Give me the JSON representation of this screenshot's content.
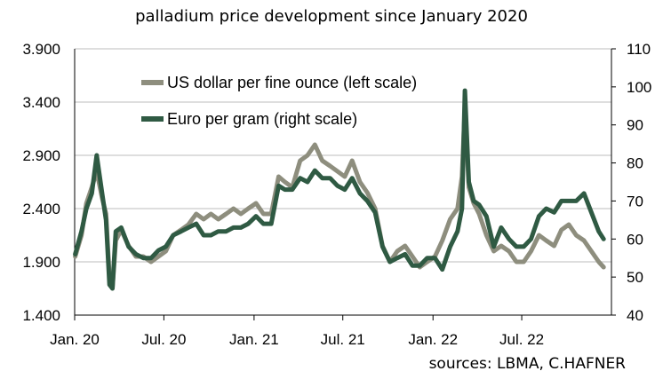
{
  "chart_data": {
    "type": "line",
    "title": "palladium price development since January 2020",
    "source": "sources: LBMA, C.HAFNER",
    "x_labels": [
      "Jan. 20",
      "Jul. 20",
      "Jan. 21",
      "Jul. 21",
      "Jan. 22",
      "Jul. 22"
    ],
    "y_left": {
      "ticks": [
        "1.400",
        "1.900",
        "2.400",
        "2.900",
        "3.400",
        "3.900"
      ],
      "ylim": [
        1400,
        3900
      ]
    },
    "y_right": {
      "ticks": [
        "40",
        "50",
        "60",
        "70",
        "80",
        "90",
        "100",
        "110"
      ],
      "ylim": [
        40,
        110
      ]
    },
    "grid": "horizontal",
    "legend_position": "top-left",
    "series": [
      {
        "name": "US dollar per fine ounce (left scale)",
        "axis": "left",
        "color": "#8e8e7e",
        "x": [
          "2020-01-02",
          "2020-01-15",
          "2020-01-25",
          "2020-02-05",
          "2020-02-15",
          "2020-02-26",
          "2020-03-05",
          "2020-03-12",
          "2020-03-18",
          "2020-03-25",
          "2020-04-05",
          "2020-04-20",
          "2020-05-05",
          "2020-05-20",
          "2020-06-05",
          "2020-06-20",
          "2020-07-05",
          "2020-07-20",
          "2020-08-05",
          "2020-08-20",
          "2020-09-05",
          "2020-09-20",
          "2020-10-05",
          "2020-10-20",
          "2020-11-05",
          "2020-11-20",
          "2020-12-05",
          "2020-12-20",
          "2021-01-05",
          "2021-01-20",
          "2021-02-05",
          "2021-02-20",
          "2021-03-05",
          "2021-03-20",
          "2021-04-05",
          "2021-04-20",
          "2021-05-05",
          "2021-05-20",
          "2021-06-05",
          "2021-06-20",
          "2021-07-05",
          "2021-07-20",
          "2021-08-05",
          "2021-08-20",
          "2021-09-05",
          "2021-09-20",
          "2021-10-05",
          "2021-10-20",
          "2021-11-05",
          "2021-11-20",
          "2021-12-05",
          "2021-12-20",
          "2022-01-05",
          "2022-01-20",
          "2022-02-05",
          "2022-02-20",
          "2022-03-01",
          "2022-03-07",
          "2022-03-15",
          "2022-03-25",
          "2022-04-05",
          "2022-04-20",
          "2022-05-05",
          "2022-05-20",
          "2022-06-05",
          "2022-06-20",
          "2022-07-05",
          "2022-07-20",
          "2022-08-05",
          "2022-08-20",
          "2022-09-05",
          "2022-09-20",
          "2022-10-05",
          "2022-10-20",
          "2022-11-05",
          "2022-11-20",
          "2022-12-05",
          "2022-12-15"
        ],
        "values": [
          1950,
          2150,
          2450,
          2600,
          2750,
          2500,
          2350,
          1750,
          1650,
          2100,
          2200,
          2050,
          1950,
          1950,
          1900,
          1950,
          2000,
          2150,
          2200,
          2250,
          2350,
          2300,
          2350,
          2300,
          2350,
          2400,
          2350,
          2400,
          2450,
          2350,
          2350,
          2700,
          2650,
          2600,
          2850,
          2900,
          3000,
          2850,
          2800,
          2750,
          2700,
          2850,
          2650,
          2550,
          2400,
          2050,
          1900,
          2000,
          2050,
          1950,
          1850,
          1900,
          1950,
          2100,
          2300,
          2400,
          2700,
          3350,
          2600,
          2450,
          2350,
          2150,
          2000,
          2050,
          2000,
          1900,
          1900,
          2000,
          2150,
          2100,
          2050,
          2200,
          2250,
          2150,
          2100,
          2000,
          1900,
          1850
        ]
      },
      {
        "name": "Euro per gram (right scale)",
        "axis": "right",
        "color": "#2f5a43",
        "x": [
          "2020-01-02",
          "2020-01-15",
          "2020-01-25",
          "2020-02-05",
          "2020-02-15",
          "2020-02-26",
          "2020-03-05",
          "2020-03-12",
          "2020-03-18",
          "2020-03-25",
          "2020-04-05",
          "2020-04-20",
          "2020-05-05",
          "2020-05-20",
          "2020-06-05",
          "2020-06-20",
          "2020-07-05",
          "2020-07-20",
          "2020-08-05",
          "2020-08-20",
          "2020-09-05",
          "2020-09-20",
          "2020-10-05",
          "2020-10-20",
          "2020-11-05",
          "2020-11-20",
          "2020-12-05",
          "2020-12-20",
          "2021-01-05",
          "2021-01-20",
          "2021-02-05",
          "2021-02-20",
          "2021-03-05",
          "2021-03-20",
          "2021-04-05",
          "2021-04-20",
          "2021-05-05",
          "2021-05-20",
          "2021-06-05",
          "2021-06-20",
          "2021-07-05",
          "2021-07-20",
          "2021-08-05",
          "2021-08-20",
          "2021-09-05",
          "2021-09-20",
          "2021-10-05",
          "2021-10-20",
          "2021-11-05",
          "2021-11-20",
          "2021-12-05",
          "2021-12-20",
          "2022-01-05",
          "2022-01-20",
          "2022-02-05",
          "2022-02-20",
          "2022-03-01",
          "2022-03-07",
          "2022-03-15",
          "2022-03-25",
          "2022-04-05",
          "2022-04-20",
          "2022-05-05",
          "2022-05-20",
          "2022-06-05",
          "2022-06-20",
          "2022-07-05",
          "2022-07-20",
          "2022-08-05",
          "2022-08-20",
          "2022-09-05",
          "2022-09-20",
          "2022-10-05",
          "2022-10-20",
          "2022-11-05",
          "2022-11-20",
          "2022-12-05",
          "2022-12-15"
        ],
        "values": [
          56,
          62,
          68,
          72,
          82,
          72,
          65,
          48,
          47,
          62,
          63,
          58,
          56,
          55,
          55,
          57,
          58,
          61,
          62,
          63,
          64,
          61,
          61,
          62,
          62,
          63,
          63,
          64,
          66,
          64,
          64,
          74,
          73,
          73,
          76,
          75,
          78,
          76,
          76,
          74,
          73,
          76,
          72,
          70,
          67,
          58,
          54,
          55,
          56,
          53,
          53,
          55,
          55,
          52,
          58,
          62,
          68,
          99,
          75,
          70,
          69,
          66,
          58,
          63,
          60,
          58,
          58,
          60,
          66,
          68,
          67,
          70,
          70,
          70,
          72,
          67,
          62,
          60
        ]
      }
    ]
  }
}
